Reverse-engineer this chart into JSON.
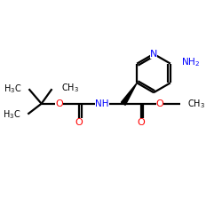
{
  "bg_color": "#ffffff",
  "atom_colors": {
    "C": "#000000",
    "N": "#0000ff",
    "O": "#ff0000",
    "H": "#000000"
  },
  "bond_color": "#000000",
  "bond_width": 1.6,
  "figsize": [
    2.5,
    2.5
  ],
  "dpi": 100
}
